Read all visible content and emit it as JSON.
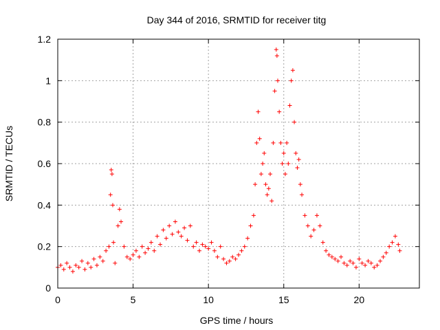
{
  "chart_data": {
    "type": "scatter",
    "title": "Day 344 of 2016, SRMTID for receiver titg",
    "xlabel": "GPS time / hours",
    "ylabel": "SRMTID / TECUs",
    "xlim": [
      0,
      24
    ],
    "ylim": [
      0,
      1.2
    ],
    "xticks": [
      0,
      5,
      10,
      15,
      20
    ],
    "xtick_labels": [
      "0",
      "5",
      "10",
      "15",
      "20"
    ],
    "yticks": [
      0,
      0.2,
      0.4,
      0.6,
      0.8,
      1,
      1.2
    ],
    "ytick_labels": [
      "0",
      "0.2",
      "0.4",
      "0.6",
      "0.8",
      "1",
      "1.2"
    ],
    "grid": true,
    "marker": "plus",
    "color": "#ff0000",
    "series": [
      {
        "name": "titg",
        "x": [
          0.0,
          0.2,
          0.4,
          0.6,
          0.8,
          1.0,
          1.2,
          1.4,
          1.6,
          1.8,
          2.0,
          2.2,
          2.4,
          2.6,
          2.8,
          3.0,
          3.2,
          3.4,
          3.5,
          3.55,
          3.6,
          3.65,
          3.7,
          3.8,
          4.0,
          4.1,
          4.2,
          4.4,
          4.6,
          4.8,
          5.0,
          5.2,
          5.4,
          5.6,
          5.8,
          6.0,
          6.2,
          6.4,
          6.6,
          6.8,
          7.0,
          7.2,
          7.4,
          7.6,
          7.8,
          8.0,
          8.2,
          8.4,
          8.6,
          8.8,
          9.0,
          9.2,
          9.4,
          9.6,
          9.8,
          10.0,
          10.2,
          10.4,
          10.6,
          10.8,
          11.0,
          11.2,
          11.4,
          11.6,
          11.8,
          12.0,
          12.2,
          12.4,
          12.6,
          12.8,
          13.0,
          13.1,
          13.2,
          13.3,
          13.4,
          13.5,
          13.6,
          13.7,
          13.8,
          13.9,
          14.0,
          14.1,
          14.2,
          14.3,
          14.4,
          14.5,
          14.55,
          14.6,
          14.7,
          14.8,
          14.9,
          15.0,
          15.1,
          15.2,
          15.3,
          15.4,
          15.5,
          15.6,
          15.7,
          15.8,
          15.9,
          16.0,
          16.1,
          16.2,
          16.4,
          16.6,
          16.8,
          17.0,
          17.2,
          17.4,
          17.6,
          17.8,
          18.0,
          18.2,
          18.4,
          18.6,
          18.8,
          19.0,
          19.2,
          19.4,
          19.6,
          19.8,
          20.0,
          20.2,
          20.4,
          20.6,
          20.8,
          21.0,
          21.2,
          21.4,
          21.6,
          21.8,
          22.0,
          22.2,
          22.4,
          22.6,
          22.7
        ],
        "y": [
          0.1,
          0.11,
          0.09,
          0.12,
          0.1,
          0.08,
          0.11,
          0.1,
          0.13,
          0.09,
          0.12,
          0.1,
          0.14,
          0.11,
          0.15,
          0.13,
          0.18,
          0.2,
          0.45,
          0.57,
          0.55,
          0.4,
          0.22,
          0.12,
          0.3,
          0.38,
          0.32,
          0.2,
          0.15,
          0.14,
          0.16,
          0.18,
          0.15,
          0.2,
          0.17,
          0.19,
          0.22,
          0.18,
          0.25,
          0.21,
          0.28,
          0.24,
          0.3,
          0.26,
          0.32,
          0.27,
          0.25,
          0.29,
          0.23,
          0.3,
          0.2,
          0.22,
          0.18,
          0.21,
          0.2,
          0.19,
          0.22,
          0.18,
          0.15,
          0.2,
          0.14,
          0.12,
          0.13,
          0.15,
          0.14,
          0.16,
          0.18,
          0.2,
          0.24,
          0.3,
          0.35,
          0.5,
          0.7,
          0.85,
          0.72,
          0.55,
          0.6,
          0.65,
          0.5,
          0.45,
          0.48,
          0.55,
          0.42,
          0.7,
          0.95,
          1.15,
          1.12,
          1.0,
          0.85,
          0.7,
          0.6,
          0.65,
          0.55,
          0.7,
          0.6,
          0.88,
          1.0,
          1.05,
          0.8,
          0.65,
          0.58,
          0.62,
          0.5,
          0.45,
          0.35,
          0.3,
          0.25,
          0.28,
          0.35,
          0.3,
          0.22,
          0.18,
          0.16,
          0.15,
          0.14,
          0.13,
          0.15,
          0.12,
          0.11,
          0.13,
          0.12,
          0.1,
          0.14,
          0.12,
          0.11,
          0.13,
          0.12,
          0.1,
          0.11,
          0.13,
          0.15,
          0.17,
          0.2,
          0.22,
          0.25,
          0.21,
          0.18
        ]
      }
    ]
  }
}
